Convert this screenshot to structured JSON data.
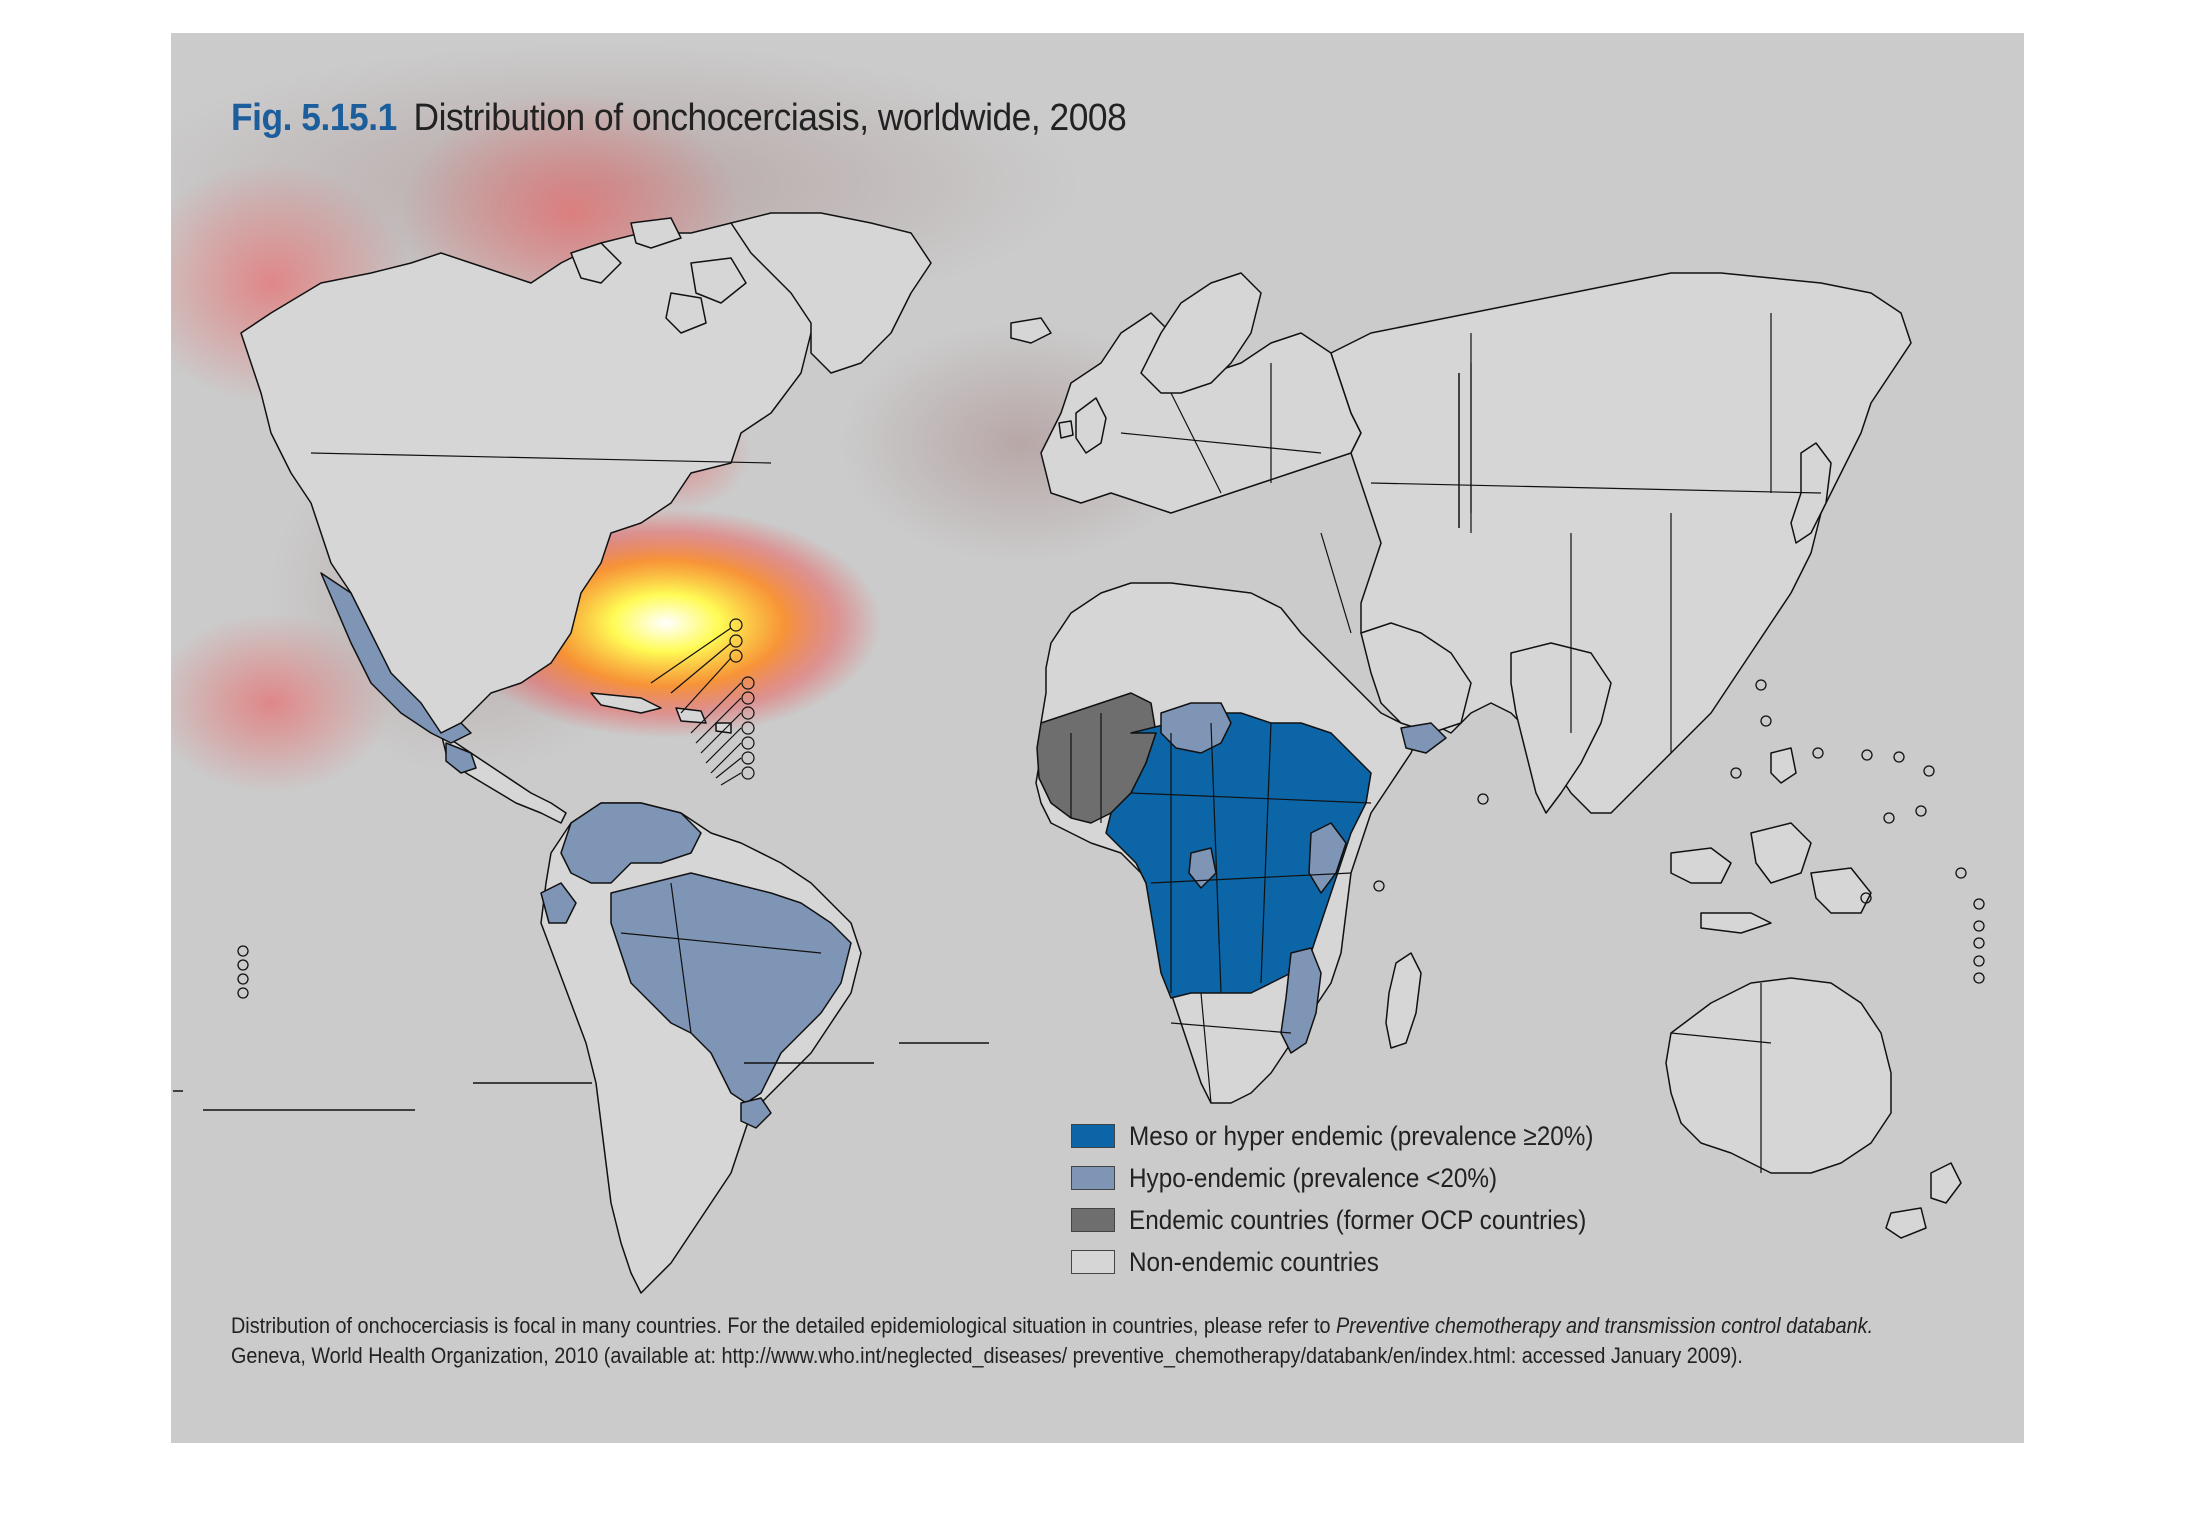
{
  "figure": {
    "number": "Fig. 5.15.1",
    "title": "Distribution of onchocerciasis, worldwide, 2008"
  },
  "legend": [
    {
      "label": "Meso or hyper endemic (prevalence ≥20%)",
      "color": "#0b65a6"
    },
    {
      "label": "Hypo-endemic (prevalence <20%)",
      "color": "#7e95b6"
    },
    {
      "label": "Endemic countries (former OCP countries)",
      "color": "#6e6e6e"
    },
    {
      "label": "Non-endemic countries",
      "color": "#d6d6d6"
    }
  ],
  "note": {
    "line1_prefix": "Distribution of onchocerciasis is focal in many countries. For the detailed epidemiological situation in countries, please refer to ",
    "line1_italic": "Preventive chemotherapy and transmission control databank.",
    "line2": "Geneva, World Health Organization, 2010 (available at: http://www.who.int/neglected_diseases/ preventive_chemotherapy/databank/en/index.html: accessed January 2009)."
  },
  "colors": {
    "panel_background": "#cbcbcb",
    "land": "#d6d6d6",
    "border": "#111111",
    "title_number": "#1c5d9c"
  },
  "map": {
    "region_categories": {
      "mexico": "Hypo-endemic",
      "guatemala": "Hypo-endemic",
      "venezuela": "Hypo-endemic",
      "colombia": "Hypo-endemic",
      "ecuador": "Hypo-endemic",
      "brazil": "Hypo-endemic",
      "west_africa_ocp": "Endemic countries (former OCP countries)",
      "central_africa": "Meso or hyper endemic",
      "east_africa": "Meso or hyper endemic",
      "sudan_north": "Hypo-endemic",
      "kenya": "Hypo-endemic",
      "yemen": "Hypo-endemic",
      "malawi_moz": "Hypo-endemic"
    }
  }
}
